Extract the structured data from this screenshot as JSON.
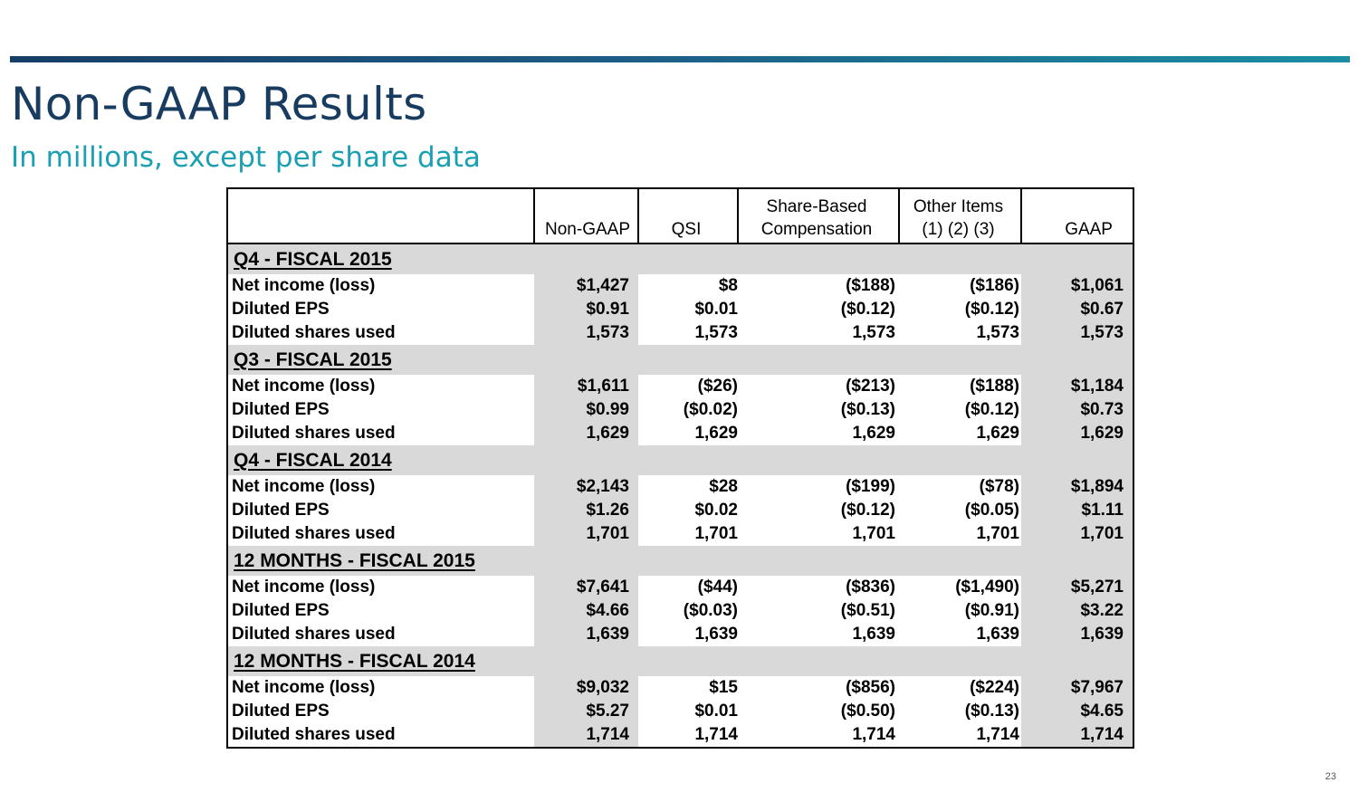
{
  "page": {
    "title": "Non-GAAP Results",
    "subtitle": "In millions, except per share data",
    "page_number": "23"
  },
  "table": {
    "headers": {
      "non_gaap": "Non-GAAP",
      "qsi": "QSI",
      "sbc_line1": "Share-Based",
      "sbc_line2": "Compensation",
      "other_line1": "Other Items",
      "other_line2": "(1) (2) (3)",
      "gaap": "GAAP"
    },
    "sections": [
      {
        "title": "Q4 - FISCAL 2015",
        "rows": [
          {
            "label": "Net income (loss)",
            "non_gaap": "$1,427",
            "qsi": "$8",
            "sbc": "($188)",
            "other": "($186)",
            "gaap": "$1,061"
          },
          {
            "label": "Diluted EPS",
            "non_gaap": "$0.91",
            "qsi": "$0.01",
            "sbc": "($0.12)",
            "other": "($0.12)",
            "gaap": "$0.67"
          },
          {
            "label": "Diluted shares used",
            "non_gaap": "1,573",
            "qsi": "1,573",
            "sbc": "1,573",
            "other": "1,573",
            "gaap": "1,573"
          }
        ]
      },
      {
        "title": "Q3 - FISCAL 2015",
        "rows": [
          {
            "label": "Net income (loss)",
            "non_gaap": "$1,611",
            "qsi": "($26)",
            "sbc": "($213)",
            "other": "($188)",
            "gaap": "$1,184"
          },
          {
            "label": "Diluted EPS",
            "non_gaap": "$0.99",
            "qsi": "($0.02)",
            "sbc": "($0.13)",
            "other": "($0.12)",
            "gaap": "$0.73"
          },
          {
            "label": "Diluted shares used",
            "non_gaap": "1,629",
            "qsi": "1,629",
            "sbc": "1,629",
            "other": "1,629",
            "gaap": "1,629"
          }
        ]
      },
      {
        "title": "Q4 - FISCAL 2014",
        "rows": [
          {
            "label": "Net income (loss)",
            "non_gaap": "$2,143",
            "qsi": "$28",
            "sbc": "($199)",
            "other": "($78)",
            "gaap": "$1,894"
          },
          {
            "label": "Diluted EPS",
            "non_gaap": "$1.26",
            "qsi": "$0.02",
            "sbc": "($0.12)",
            "other": "($0.05)",
            "gaap": "$1.11"
          },
          {
            "label": "Diluted shares used",
            "non_gaap": "1,701",
            "qsi": "1,701",
            "sbc": "1,701",
            "other": "1,701",
            "gaap": "1,701"
          }
        ]
      },
      {
        "title": "12 MONTHS - FISCAL 2015",
        "rows": [
          {
            "label": "Net income (loss)",
            "non_gaap": "$7,641",
            "qsi": "($44)",
            "sbc": "($836)",
            "other": "($1,490)",
            "gaap": "$5,271"
          },
          {
            "label": "Diluted EPS",
            "non_gaap": "$4.66",
            "qsi": "($0.03)",
            "sbc": "($0.51)",
            "other": "($0.91)",
            "gaap": "$3.22"
          },
          {
            "label": "Diluted shares used",
            "non_gaap": "1,639",
            "qsi": "1,639",
            "sbc": "1,639",
            "other": "1,639",
            "gaap": "1,639"
          }
        ]
      },
      {
        "title": "12 MONTHS - FISCAL 2014",
        "rows": [
          {
            "label": "Net income (loss)",
            "non_gaap": "$9,032",
            "qsi": "$15",
            "sbc": "($856)",
            "other": "($224)",
            "gaap": "$7,967"
          },
          {
            "label": "Diluted EPS",
            "non_gaap": "$5.27",
            "qsi": "$0.01",
            "sbc": "($0.50)",
            "other": "($0.13)",
            "gaap": "$4.65"
          },
          {
            "label": "Diluted shares used",
            "non_gaap": "1,714",
            "qsi": "1,714",
            "sbc": "1,714",
            "other": "1,714",
            "gaap": "1,714"
          }
        ]
      }
    ]
  }
}
